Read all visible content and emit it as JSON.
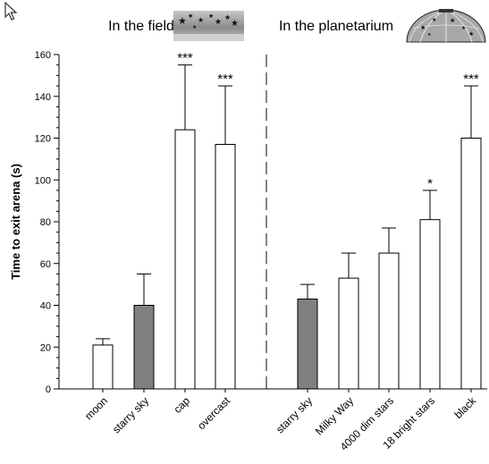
{
  "panels": {
    "field_label": "In the field",
    "planetarium_label": "In the planetarium"
  },
  "icons": {
    "cursor": "mouse-pointer-icon",
    "field": "starry-sky-band-icon",
    "planetarium": "planetarium-dome-icon"
  },
  "colors": {
    "filled_bar": "#808080",
    "open_bar": "#ffffff",
    "stroke": "#000000"
  },
  "chart_data": {
    "type": "bar",
    "ylabel": "Time to exit arena (s)",
    "ylim": [
      0,
      160
    ],
    "yticks": [
      0,
      20,
      40,
      60,
      80,
      100,
      120,
      140,
      160
    ],
    "groups": [
      {
        "name": "In the field",
        "categories": [
          "moon",
          "starry sky",
          "cap",
          "overcast"
        ],
        "values": [
          21,
          40,
          124,
          117
        ],
        "error_upper": [
          24,
          55,
          155,
          145
        ],
        "significance": [
          "",
          "",
          "***",
          "***"
        ],
        "filled": [
          false,
          true,
          false,
          false
        ]
      },
      {
        "name": "In the planetarium",
        "categories": [
          "starry sky",
          "Milky Way",
          "4000 dim stars",
          "18 bright stars",
          "black"
        ],
        "values": [
          43,
          53,
          65,
          81,
          120
        ],
        "error_upper": [
          50,
          65,
          77,
          95,
          145
        ],
        "significance": [
          "",
          "",
          "",
          "*",
          "***"
        ],
        "filled": [
          true,
          false,
          false,
          false,
          false
        ]
      }
    ],
    "error_bars": "upper",
    "divider": "dashed vertical line between groups",
    "grid": false,
    "legend": "none"
  }
}
